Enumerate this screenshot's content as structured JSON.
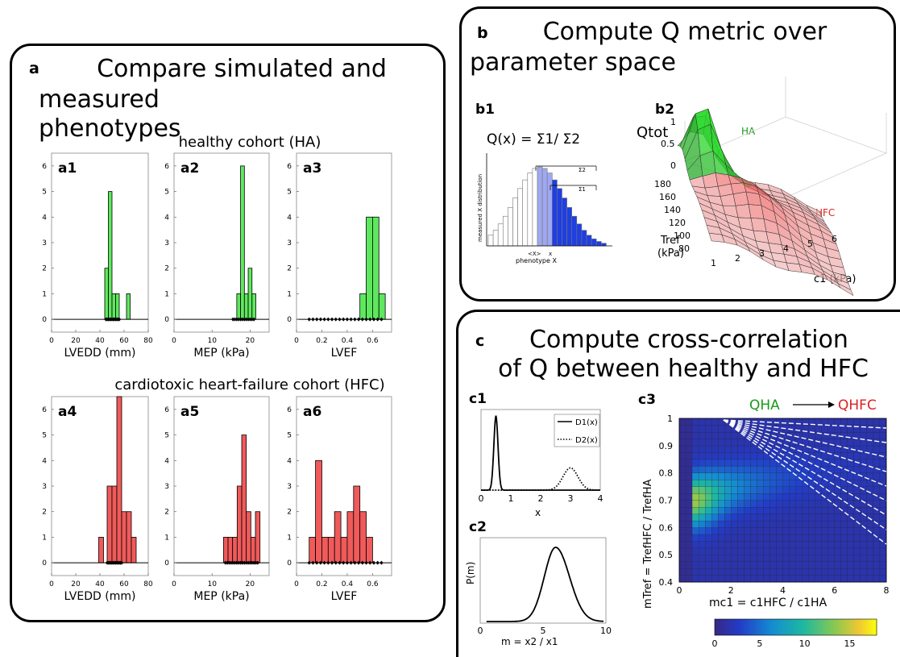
{
  "panel_a": {
    "label": "a",
    "title_line1": "Compare simulated and",
    "title_line2": "measured phenotypes",
    "healthy_title": "healthy cohort (HA)",
    "hfc_title": "cardiotoxic heart-failure cohort (HFC)"
  },
  "panel_b": {
    "label": "b",
    "title_line1": "Compute Q metric over",
    "title_line2": "parameter space",
    "b1_label": "b1",
    "b1_formula": "Q(x) = Σ1/ Σ2",
    "b1_ylabel": "measured X distribution",
    "b1_xlabel": "phenotype X",
    "b1_mean": "<X>",
    "b1_x": "x",
    "b1_sigma2": "Σ2",
    "b1_sigma1": "Σ1",
    "b2_label": "b2",
    "b2_zlabel": "Qtot",
    "b2_ha": "HA",
    "b2_hfc": "HFC",
    "b2_tref": "Tref",
    "b2_tref_unit": "(kPa)",
    "b2_c1": "c1  (kPa)",
    "b2_z_ticks": [
      "1",
      "0.5",
      "0"
    ],
    "b2_y_ticks": [
      "180",
      "160",
      "140",
      "120",
      "100",
      "80"
    ],
    "b2_x_ticks": [
      "1",
      "2",
      "3",
      "4",
      "5",
      "6"
    ]
  },
  "panel_c": {
    "label": "c",
    "title_line1": "Compute cross-correlation",
    "title_line2": "of Q between healthy and HFC",
    "c1_label": "c1",
    "c2_label": "c2",
    "c3_label": "c3",
    "c1_legend1": "D1(x)",
    "c1_legend2": "D2(x)",
    "c1_xlabel": "x",
    "c2_ylabel": "P(m)",
    "c2_xlabel": "m = x2 / x1",
    "c3_arrow_left": "QHA",
    "c3_arrow_right": "QHFC",
    "c3_ylabel": "mTref =  TrefHFC / TrefHA",
    "c3_xlabel": "mc1 =  c1HFC / c1HA"
  },
  "colors": {
    "healthy": "#5ee85e",
    "hfc": "#f05a5a",
    "dots": "#000000"
  },
  "chart_data": [
    {
      "id": "a1",
      "type": "bar",
      "label": "a1",
      "xlabel": "LVEDD (mm)",
      "xlim": [
        0,
        80
      ],
      "ylim": [
        0,
        6.5
      ],
      "xticks": [
        0,
        20,
        40,
        60,
        80
      ],
      "yticks": [
        0,
        1,
        2,
        3,
        4,
        5,
        6
      ],
      "color": "healthy",
      "bars": [
        {
          "x0": 44,
          "x1": 47,
          "y": 2
        },
        {
          "x0": 47,
          "x1": 50,
          "y": 5
        },
        {
          "x0": 50,
          "x1": 53,
          "y": 1
        },
        {
          "x0": 53,
          "x1": 56,
          "y": 1
        },
        {
          "x0": 62,
          "x1": 65,
          "y": 1
        }
      ],
      "dots": [
        45,
        46,
        47,
        48,
        49,
        50,
        51,
        52,
        53,
        54,
        55,
        56
      ]
    },
    {
      "id": "a2",
      "type": "bar",
      "label": "a2",
      "xlabel": "MEP (kPa)",
      "xlim": [
        0,
        25
      ],
      "ylim": [
        0,
        6.5
      ],
      "xticks": [
        0,
        10,
        20
      ],
      "yticks": [
        0,
        1,
        2,
        3,
        4,
        5,
        6
      ],
      "color": "healthy",
      "bars": [
        {
          "x0": 16.5,
          "x1": 17.5,
          "y": 1
        },
        {
          "x0": 17.5,
          "x1": 18.5,
          "y": 6
        },
        {
          "x0": 18.5,
          "x1": 19.5,
          "y": 1
        },
        {
          "x0": 19.5,
          "x1": 20.5,
          "y": 2
        },
        {
          "x0": 20.5,
          "x1": 21.5,
          "y": 1
        }
      ],
      "dots": [
        15.5,
        16,
        16.5,
        17,
        17.5,
        18,
        18.5,
        19,
        19.5,
        20,
        20.5,
        21
      ]
    },
    {
      "id": "a3",
      "type": "bar",
      "label": "a3",
      "xlabel": "LVEF",
      "xlim": [
        0,
        0.75
      ],
      "ylim": [
        0,
        6.5
      ],
      "xticks": [
        0,
        0.2,
        0.4,
        0.6
      ],
      "yticks": [
        0,
        1,
        2,
        3,
        4,
        5,
        6
      ],
      "color": "healthy",
      "bars": [
        {
          "x0": 0.5,
          "x1": 0.55,
          "y": 1
        },
        {
          "x0": 0.55,
          "x1": 0.6,
          "y": 4
        },
        {
          "x0": 0.6,
          "x1": 0.65,
          "y": 4
        },
        {
          "x0": 0.65,
          "x1": 0.7,
          "y": 1
        }
      ],
      "dots": [
        0.1,
        0.13,
        0.16,
        0.19,
        0.22,
        0.25,
        0.28,
        0.31,
        0.34,
        0.37,
        0.4,
        0.43,
        0.46,
        0.49,
        0.52,
        0.55,
        0.58,
        0.61,
        0.64,
        0.67
      ]
    },
    {
      "id": "a4",
      "type": "bar",
      "label": "a4",
      "xlabel": "LVEDD (mm)",
      "xlim": [
        0,
        80
      ],
      "ylim": [
        0,
        6.5
      ],
      "xticks": [
        0,
        20,
        40,
        60,
        80
      ],
      "yticks": [
        0,
        1,
        2,
        3,
        4,
        5,
        6
      ],
      "color": "hfc",
      "bars": [
        {
          "x0": 39,
          "x1": 43,
          "y": 1
        },
        {
          "x0": 46,
          "x1": 50,
          "y": 3
        },
        {
          "x0": 50,
          "x1": 54,
          "y": 3
        },
        {
          "x0": 54,
          "x1": 58,
          "y": 7
        },
        {
          "x0": 58,
          "x1": 62,
          "y": 2
        },
        {
          "x0": 62,
          "x1": 66,
          "y": 2
        },
        {
          "x0": 66,
          "x1": 70,
          "y": 1
        }
      ],
      "dots": [
        46,
        47,
        48,
        49,
        50,
        51,
        52,
        53,
        54,
        55,
        56,
        57,
        58
      ]
    },
    {
      "id": "a5",
      "type": "bar",
      "label": "a5",
      "xlabel": "MEP (kPa)",
      "xlim": [
        0,
        25
      ],
      "ylim": [
        0,
        6.5
      ],
      "xticks": [
        0,
        10,
        20
      ],
      "yticks": [
        0,
        1,
        2,
        3,
        4,
        5,
        6
      ],
      "color": "hfc",
      "bars": [
        {
          "x0": 13,
          "x1": 14.2,
          "y": 1
        },
        {
          "x0": 14.2,
          "x1": 15.4,
          "y": 1
        },
        {
          "x0": 15.4,
          "x1": 16.6,
          "y": 1
        },
        {
          "x0": 16.6,
          "x1": 17.8,
          "y": 3
        },
        {
          "x0": 17.8,
          "x1": 19,
          "y": 5
        },
        {
          "x0": 19,
          "x1": 20.2,
          "y": 2
        },
        {
          "x0": 20.2,
          "x1": 21.4,
          "y": 1
        },
        {
          "x0": 21.4,
          "x1": 22.6,
          "y": 2
        }
      ],
      "dots": [
        13.5,
        14,
        14.5,
        15,
        15.5,
        16,
        16.5,
        17,
        17.5,
        18,
        18.5,
        19,
        19.5,
        20,
        20.5,
        21,
        21.5,
        22
      ]
    },
    {
      "id": "a6",
      "type": "bar",
      "label": "a6",
      "xlabel": "LVEF",
      "xlim": [
        0,
        0.75
      ],
      "ylim": [
        0,
        6.5
      ],
      "xticks": [
        0,
        0.2,
        0.4,
        0.6
      ],
      "yticks": [
        0,
        1,
        2,
        3,
        4,
        5,
        6
      ],
      "color": "hfc",
      "bars": [
        {
          "x0": 0.1,
          "x1": 0.15,
          "y": 1
        },
        {
          "x0": 0.15,
          "x1": 0.2,
          "y": 4
        },
        {
          "x0": 0.2,
          "x1": 0.25,
          "y": 1
        },
        {
          "x0": 0.25,
          "x1": 0.3,
          "y": 1
        },
        {
          "x0": 0.3,
          "x1": 0.35,
          "y": 2
        },
        {
          "x0": 0.35,
          "x1": 0.4,
          "y": 1
        },
        {
          "x0": 0.4,
          "x1": 0.45,
          "y": 2
        },
        {
          "x0": 0.45,
          "x1": 0.5,
          "y": 3
        },
        {
          "x0": 0.5,
          "x1": 0.55,
          "y": 2
        },
        {
          "x0": 0.55,
          "x1": 0.6,
          "y": 1
        }
      ],
      "dots": [
        0.1,
        0.13,
        0.16,
        0.19,
        0.22,
        0.25,
        0.28,
        0.31,
        0.34,
        0.37,
        0.4,
        0.43,
        0.46,
        0.49,
        0.52,
        0.55,
        0.58,
        0.61,
        0.64,
        0.67
      ]
    },
    {
      "id": "c1",
      "type": "line",
      "label": "c1",
      "xlabel": "x",
      "xlim": [
        0,
        4
      ],
      "xticks": [
        0,
        1,
        2,
        3,
        4
      ],
      "series": [
        {
          "name": "D1(x)",
          "style": "solid",
          "mean": 0.5,
          "sd": 0.07,
          "peak": 1.0
        },
        {
          "name": "D2(x)",
          "style": "dotted",
          "mean": 3.0,
          "sd": 0.25,
          "peak": 0.3
        }
      ]
    },
    {
      "id": "c2",
      "type": "line",
      "label": "c2",
      "xlabel": "m = x2 / x1",
      "ylabel": "P(m)",
      "xlim": [
        0,
        10
      ],
      "xticks": [
        0,
        5,
        10
      ],
      "series": [
        {
          "name": "P(m)",
          "style": "solid",
          "mean": 6,
          "sd": 1.0,
          "peak": 1.0
        }
      ]
    },
    {
      "id": "c3",
      "type": "heatmap",
      "label": "c3",
      "xlim": [
        0,
        8
      ],
      "ylim": [
        0.4,
        1
      ],
      "xticks": [
        0,
        2,
        4,
        6,
        8
      ],
      "yticks": [
        0.4,
        0.5,
        0.6,
        0.7,
        0.8,
        0.9,
        1
      ],
      "colorbar": {
        "range": [
          0,
          18
        ],
        "ticks": [
          0,
          5,
          10,
          15
        ]
      },
      "peak": {
        "x": 0.8,
        "y": 0.68,
        "value": 17
      }
    }
  ]
}
